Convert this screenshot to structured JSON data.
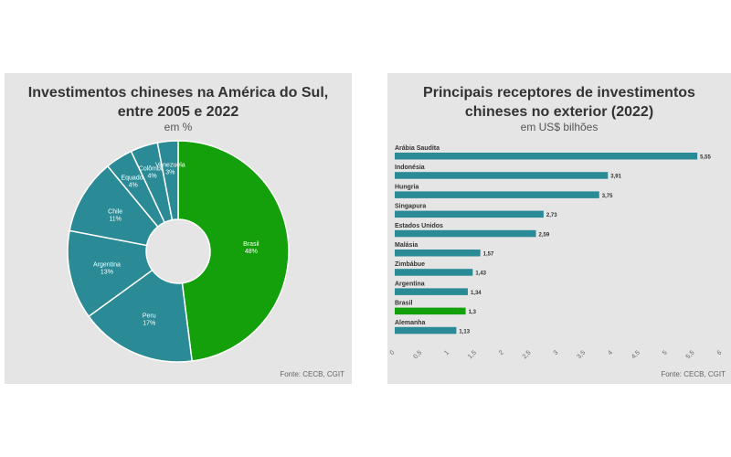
{
  "colors": {
    "teal": "#2a8a96",
    "green": "#14a00a",
    "panel": "#e5e5e5"
  },
  "left_panel": {
    "title": "Investimentos chineses na América do Sul, entre 2005 e 2022",
    "subtitle": "em %",
    "source": "Fonte: CECB, CGIT"
  },
  "right_panel": {
    "title": "Principais receptores de investimentos chineses no exterior (2022)",
    "subtitle": "em US$ bilhões",
    "source": "Fonte: CECB, CGIT"
  },
  "chart_data": [
    {
      "type": "pie",
      "title": "Investimentos chineses na América do Sul, entre 2005 e 2022",
      "subtitle": "em %",
      "categories": [
        "Brasil",
        "Peru",
        "Argentina",
        "Chile",
        "Equador",
        "Colômbia",
        "Venezuela"
      ],
      "values": [
        48,
        17,
        13,
        11,
        4,
        4,
        3
      ],
      "labels": [
        "48%",
        "17%",
        "13%",
        "11%",
        "4%",
        "4%",
        "3%"
      ],
      "highlight": "Brasil",
      "colors": {
        "default": "#2a8a96",
        "highlight": "#14a00a"
      },
      "donut": true
    },
    {
      "type": "bar",
      "orientation": "horizontal",
      "title": "Principais receptores de investimentos chineses no exterior (2022)",
      "subtitle": "em US$ bilhões",
      "categories": [
        "Arábia Saudita",
        "Indonésia",
        "Hungria",
        "Singapura",
        "Estados Unidos",
        "Malásia",
        "Zimbábue",
        "Argentina",
        "Brasil",
        "Alemanha"
      ],
      "values": [
        5.55,
        3.91,
        3.75,
        2.73,
        2.59,
        1.57,
        1.43,
        1.34,
        1.3,
        1.13
      ],
      "value_labels": [
        "5,55",
        "3,91",
        "3,75",
        "2,73",
        "2,59",
        "1,57",
        "1,43",
        "1,34",
        "1,3",
        "1,13"
      ],
      "highlight": "Brasil",
      "xlim": [
        0,
        6
      ],
      "xticks": [
        "0",
        "0,5",
        "1",
        "1,5",
        "2",
        "2,5",
        "3",
        "3,5",
        "4",
        "4,5",
        "5",
        "5,5",
        "6"
      ],
      "colors": {
        "default": "#2a8a96",
        "highlight": "#14a00a"
      }
    }
  ]
}
